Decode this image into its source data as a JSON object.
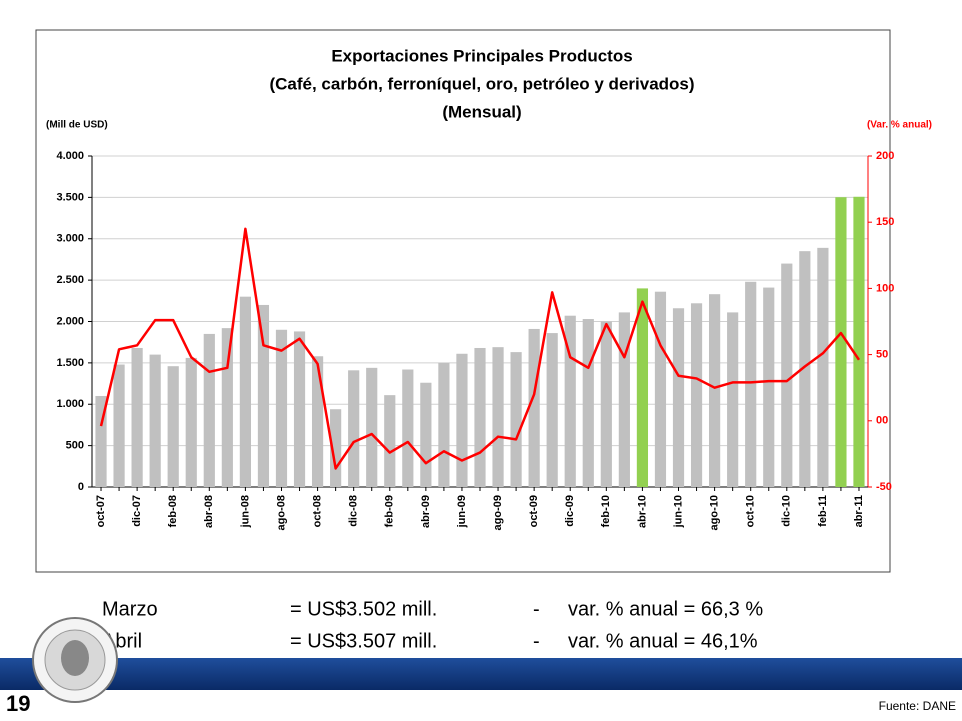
{
  "chart_data": {
    "type": "bar_line",
    "title": [
      "Exportaciones Principales Productos",
      "(Café, carbón, ferroníquel, oro, petróleo y derivados)",
      "(Mensual)"
    ],
    "ylabel": "(Mill de USD)",
    "y2label": "(Var. % anual)",
    "categories": [
      "oct-07",
      null,
      "dic-07",
      null,
      "feb-08",
      null,
      "abr-08",
      null,
      "jun-08",
      null,
      "ago-08",
      null,
      "oct-08",
      null,
      "dic-08",
      null,
      "feb-09",
      null,
      "abr-09",
      null,
      "jun-09",
      null,
      "ago-09",
      null,
      "oct-09",
      null,
      "dic-09",
      null,
      "feb-10",
      null,
      "abr-10",
      null,
      "jun-10",
      null,
      "ago-10",
      null,
      "oct-10",
      null,
      "dic-10",
      null,
      "feb-11",
      null,
      "abr-11"
    ],
    "series": [
      {
        "type": "bar",
        "color": "#c0c0c0",
        "colors": [
          "#c0c0c0",
          "#c0c0c0",
          "#c0c0c0",
          "#c0c0c0",
          "#c0c0c0",
          "#c0c0c0",
          "#c0c0c0",
          "#c0c0c0",
          "#c0c0c0",
          "#c0c0c0",
          "#c0c0c0",
          "#c0c0c0",
          "#c0c0c0",
          "#c0c0c0",
          "#c0c0c0",
          "#c0c0c0",
          "#c0c0c0",
          "#c0c0c0",
          "#c0c0c0",
          "#c0c0c0",
          "#c0c0c0",
          "#c0c0c0",
          "#c0c0c0",
          "#c0c0c0",
          "#c0c0c0",
          "#c0c0c0",
          "#c0c0c0",
          "#c0c0c0",
          "#c0c0c0",
          "#c0c0c0",
          "#92d050",
          "#c0c0c0",
          "#c0c0c0",
          "#c0c0c0",
          "#c0c0c0",
          "#c0c0c0",
          "#c0c0c0",
          "#c0c0c0",
          "#c0c0c0",
          "#c0c0c0",
          "#c0c0c0",
          "#92d050",
          "#92d050"
        ],
        "values": [
          1100,
          1480,
          1680,
          1600,
          1460,
          1560,
          1850,
          1920,
          2300,
          2200,
          1900,
          1880,
          1580,
          940,
          1410,
          1440,
          1110,
          1420,
          1260,
          1500,
          1610,
          1680,
          1690,
          1630,
          1910,
          1860,
          2070,
          2030,
          2000,
          2110,
          2400,
          2360,
          2160,
          2220,
          2330,
          2110,
          2480,
          2410,
          2700,
          2850,
          2890,
          3502,
          3507
        ]
      },
      {
        "type": "line",
        "axis": "y2",
        "color": "#ff0000",
        "values": [
          -4,
          54,
          57,
          76,
          76,
          48,
          37,
          40,
          145,
          57,
          53,
          62,
          43,
          -36,
          -16,
          -10,
          -24,
          -16,
          -32,
          -23,
          -30,
          -24,
          -12,
          -14,
          20,
          97,
          48,
          40,
          73,
          48,
          90,
          57,
          34,
          32,
          25,
          29,
          29,
          30,
          30,
          41,
          51,
          66.3,
          46.1
        ]
      }
    ],
    "ylim": [
      0,
      4000
    ],
    "yticks": [
      0,
      500,
      {
        "value": 1000,
        "label": "1.000"
      },
      {
        "value": 1500,
        "label": "1.500"
      },
      {
        "value": 2000,
        "label": "2.000"
      },
      {
        "value": 2500,
        "label": "2.500"
      },
      {
        "value": 3000,
        "label": "3.000"
      },
      {
        "value": 3500,
        "label": "3.500"
      },
      {
        "value": 4000,
        "label": "4.000"
      }
    ],
    "y2lim": [
      -50,
      200
    ],
    "y2ticks": [
      -50,
      {
        "value": 0,
        "label": "00"
      },
      50,
      100,
      150,
      200
    ],
    "y2color": "#ff0000",
    "grid": true
  },
  "notes": [
    [
      "Marzo",
      "= US$3.502 mill.",
      "-",
      "var. % anual  = 66,3 %"
    ],
    [
      "Abril",
      "= US$3.507 mill.",
      "-",
      "var. % anual  = 46,1%"
    ]
  ],
  "page_number": "19",
  "source": "Fuente: DANE"
}
